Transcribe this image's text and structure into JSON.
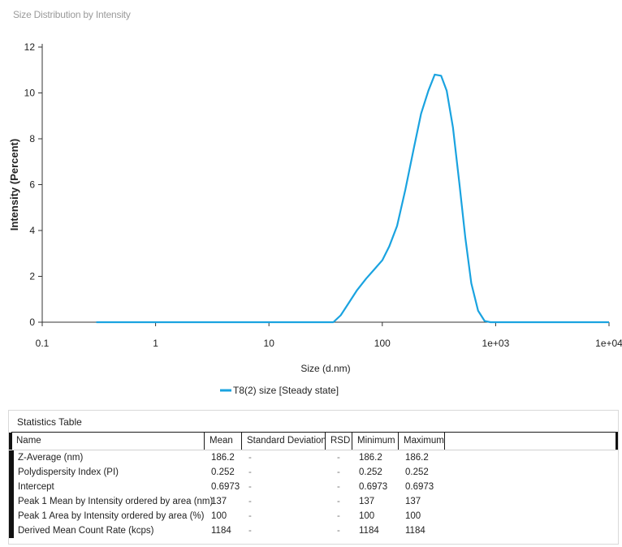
{
  "chart_title": "Size Distribution by Intensity",
  "chart_data": {
    "type": "line",
    "title": "Size Distribution by Intensity",
    "xlabel": "Size (d.nm)",
    "ylabel": "Intensity (Percent)",
    "xscale": "log",
    "xlim": [
      0.1,
      10000
    ],
    "ylim": [
      0,
      12
    ],
    "xticks": [
      {
        "value": 0.1,
        "label": "0.1"
      },
      {
        "value": 1,
        "label": "1"
      },
      {
        "value": 10,
        "label": "10"
      },
      {
        "value": 100,
        "label": "100"
      },
      {
        "value": 1000,
        "label": "1e+03"
      },
      {
        "value": 10000,
        "label": "1e+04"
      }
    ],
    "yticks": [
      {
        "value": 0,
        "label": "0"
      },
      {
        "value": 2,
        "label": "2"
      },
      {
        "value": 4,
        "label": "4"
      },
      {
        "value": 6,
        "label": "6"
      },
      {
        "value": 8,
        "label": "8"
      },
      {
        "value": 10,
        "label": "10"
      },
      {
        "value": 12,
        "label": "12"
      }
    ],
    "grid": false,
    "legend_position": "bottom-center",
    "series": [
      {
        "name": "T8(2) size [Steady state]",
        "color": "#1aa3e0",
        "x": [
          0.3,
          1,
          10,
          37,
          43,
          50,
          60,
          72,
          85,
          100,
          115,
          135,
          160,
          190,
          220,
          255,
          290,
          330,
          370,
          420,
          480,
          540,
          610,
          700,
          800,
          900,
          1100,
          2000,
          10000
        ],
        "y": [
          0,
          0,
          0,
          0,
          0.3,
          0.8,
          1.4,
          1.9,
          2.3,
          2.7,
          3.3,
          4.2,
          5.8,
          7.6,
          9.1,
          10.1,
          10.8,
          10.75,
          10.1,
          8.5,
          6.0,
          3.7,
          1.7,
          0.5,
          0.05,
          0,
          0,
          0,
          0
        ]
      }
    ]
  },
  "stats": {
    "title": "Statistics Table",
    "columns": [
      "Name",
      "Mean",
      "Standard Deviation",
      "RSD",
      "Minimum",
      "Maximum"
    ],
    "rows": [
      [
        "Z-Average (nm)",
        "186.2",
        "-",
        "-",
        "186.2",
        "186.2"
      ],
      [
        "Polydispersity Index (PI)",
        "0.252",
        "-",
        "-",
        "0.252",
        "0.252"
      ],
      [
        "Intercept",
        "0.6973",
        "-",
        "-",
        "0.6973",
        "0.6973"
      ],
      [
        "Peak 1 Mean by Intensity ordered by area (nm)",
        "137",
        "-",
        "-",
        "137",
        "137"
      ],
      [
        "Peak 1 Area by Intensity ordered by area (%)",
        "100",
        "-",
        "-",
        "100",
        "100"
      ],
      [
        "Derived Mean Count Rate (kcps)",
        "1184",
        "-",
        "-",
        "1184",
        "1184"
      ]
    ]
  }
}
